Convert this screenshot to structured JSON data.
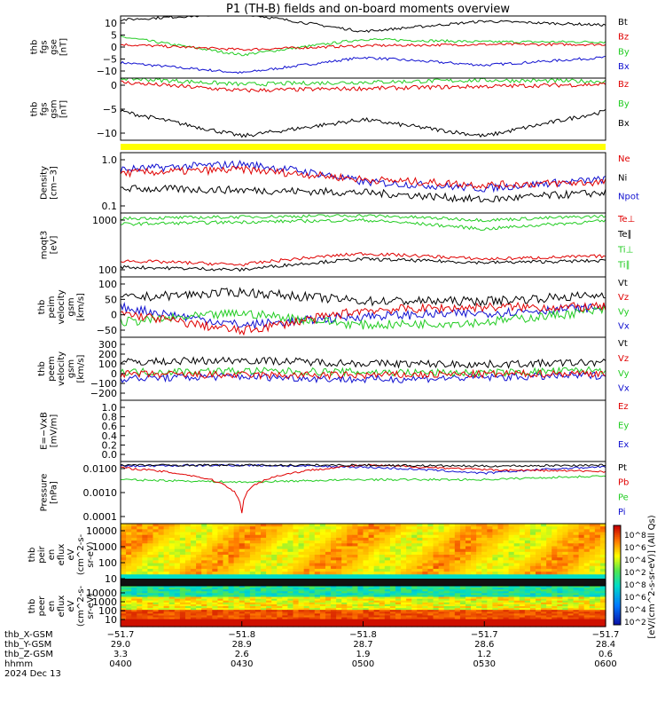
{
  "title": "P1 (TH-B) fields and on-board moments overview",
  "colors": {
    "black": "#000000",
    "red": "#e00000",
    "green": "#22cc22",
    "blue": "#1010d0",
    "yellow": "#ffff00"
  },
  "panels": [
    {
      "id": "fgs-gse",
      "ylabel": [
        "thb",
        "fgs",
        "gse",
        "[nT]"
      ],
      "ticks": [
        "10",
        "5",
        "0",
        "−5",
        "−10"
      ],
      "legend": [
        {
          "t": "Bt",
          "c": "black"
        },
        {
          "t": "Bz",
          "c": "red"
        },
        {
          "t": "By",
          "c": "green"
        },
        {
          "t": "Bx",
          "c": "blue"
        }
      ]
    },
    {
      "id": "fgs-gsm",
      "ylabel": [
        "thb",
        "fgs",
        "gsm",
        "[nT]"
      ],
      "ticks": [
        "0",
        "−5",
        "−10"
      ],
      "legend": [
        {
          "t": "Bz",
          "c": "red"
        },
        {
          "t": "By",
          "c": "green"
        },
        {
          "t": "Bx",
          "c": "black"
        }
      ]
    },
    {
      "id": "density",
      "ylabel": [
        "Density",
        "[cm−3]"
      ],
      "ticks": [
        "1.0",
        "0.1"
      ],
      "legend": [
        {
          "t": "Ne",
          "c": "red"
        },
        {
          "t": "Ni",
          "c": "black"
        },
        {
          "t": "Npot",
          "c": "blue"
        }
      ]
    },
    {
      "id": "temp",
      "ylabel": [
        "moqt3",
        "[eV]"
      ],
      "ticks": [
        "1000",
        "100"
      ],
      "legend": [
        {
          "t": "Te⊥",
          "c": "red"
        },
        {
          "t": "Te∥",
          "c": "black"
        },
        {
          "t": "Ti⊥",
          "c": "green"
        },
        {
          "t": "Ti∥",
          "c": "green"
        }
      ]
    },
    {
      "id": "peim",
      "ylabel": [
        "thb",
        "peim",
        "velocity",
        "gsm",
        "[km/s]"
      ],
      "ticks": [
        "100",
        "50",
        "0",
        "−50"
      ],
      "legend": [
        {
          "t": "Vt",
          "c": "black"
        },
        {
          "t": "Vz",
          "c": "red"
        },
        {
          "t": "Vy",
          "c": "green"
        },
        {
          "t": "Vx",
          "c": "blue"
        }
      ]
    },
    {
      "id": "peem",
      "ylabel": [
        "thb",
        "peem",
        "velocity",
        "gsm",
        "[km/s]"
      ],
      "ticks": [
        "300",
        "200",
        "100",
        "0",
        "−100",
        "−200"
      ],
      "legend": [
        {
          "t": "Vt",
          "c": "black"
        },
        {
          "t": "Vz",
          "c": "red"
        },
        {
          "t": "Vy",
          "c": "green"
        },
        {
          "t": "Vx",
          "c": "blue"
        }
      ]
    },
    {
      "id": "efield",
      "ylabel": [
        "E=−VxB",
        "[mV/m]"
      ],
      "ticks": [
        "1.0",
        "0.8",
        "0.6",
        "0.4",
        "0.2",
        "0.0"
      ],
      "legend": [
        {
          "t": "Ez",
          "c": "red"
        },
        {
          "t": "Ey",
          "c": "green"
        },
        {
          "t": "Ex",
          "c": "blue"
        }
      ]
    },
    {
      "id": "pressure",
      "ylabel": [
        "Pressure",
        "[nPa]"
      ],
      "ticks": [
        "0.0100",
        "0.0010",
        "0.0001"
      ],
      "legend": [
        {
          "t": "Pt",
          "c": "black"
        },
        {
          "t": "Pb",
          "c": "red"
        },
        {
          "t": "Pe",
          "c": "green"
        },
        {
          "t": "Pi",
          "c": "blue"
        }
      ]
    },
    {
      "id": "peir",
      "ylabel": [
        "thb",
        "peir",
        "en",
        "eflux",
        "eV",
        "(cm^2-s-",
        "sr-eV)"
      ],
      "ticks": [
        "10000",
        "1000",
        "100",
        "10"
      ],
      "legend": []
    },
    {
      "id": "peer",
      "ylabel": [
        "thb",
        "peer",
        "en",
        "eflux",
        "eV",
        "(cm^2-s-",
        "sr-eV)"
      ],
      "ticks": [
        "10000",
        "1000",
        "100",
        "10"
      ],
      "legend": []
    }
  ],
  "colorbar": {
    "ticks": [
      "10^8",
      "10^6",
      "10^4",
      "10^2",
      "10^8",
      "10^6",
      "10^4",
      "10^2"
    ],
    "label": "[eV/(cm^2-s-sr-eV)] (All Qs)"
  },
  "xaxis": {
    "rows": [
      {
        "label": "thb_X-GSM",
        "vals": [
          "−51.7",
          "−51.8",
          "−51.8",
          "−51.7",
          "−51.7"
        ]
      },
      {
        "label": "thb_Y-GSM",
        "vals": [
          "29.0",
          "28.9",
          "28.7",
          "28.6",
          "28.4"
        ]
      },
      {
        "label": "thb_Z-GSM",
        "vals": [
          "3.3",
          "2.6",
          "1.9",
          "1.2",
          "0.6"
        ]
      },
      {
        "label": "hhmm",
        "vals": [
          "0400",
          "0430",
          "0500",
          "0530",
          "0600"
        ]
      }
    ],
    "date": "2024 Dec 13"
  },
  "chart_data": [
    {
      "type": "line",
      "id": "fgs-gse",
      "ylim": [
        -12,
        12
      ],
      "x": [
        "0400",
        "0430",
        "0500",
        "0530",
        "0600"
      ],
      "series": [
        {
          "name": "Bt",
          "values": [
            10.5,
            13,
            6,
            10,
            8.5
          ]
        },
        {
          "name": "Bz",
          "values": [
            1,
            -1,
            0.5,
            1,
            1
          ]
        },
        {
          "name": "By",
          "values": [
            4,
            -3,
            3,
            2,
            2
          ]
        },
        {
          "name": "Bx",
          "values": [
            -6,
            -10,
            -4,
            -7,
            -4
          ]
        }
      ]
    },
    {
      "type": "line",
      "id": "fgs-gsm",
      "ylim": [
        -13,
        2
      ],
      "x": [
        "0400",
        "0430",
        "0500",
        "0530",
        "0600"
      ],
      "series": [
        {
          "name": "Bz",
          "values": [
            1,
            -1,
            -0.5,
            0,
            0.5
          ]
        },
        {
          "name": "By",
          "values": [
            2,
            0.5,
            1,
            1.5,
            1.2
          ]
        },
        {
          "name": "Bx",
          "values": [
            -6,
            -12,
            -8,
            -12,
            -6
          ]
        }
      ]
    },
    {
      "type": "line",
      "id": "density",
      "ylim": [
        0.1,
        1.5
      ],
      "x": [
        "0400",
        "0430",
        "0500",
        "0530",
        "0600"
      ],
      "series": [
        {
          "name": "Ne",
          "values": [
            0.6,
            0.7,
            0.45,
            0.35,
            0.4
          ]
        },
        {
          "name": "Ni",
          "values": [
            0.3,
            0.28,
            0.25,
            0.18,
            0.25
          ]
        },
        {
          "name": "Npot",
          "values": [
            0.7,
            0.9,
            0.4,
            0.3,
            0.45
          ]
        }
      ]
    },
    {
      "type": "line",
      "id": "temp",
      "ylim": [
        40,
        1500
      ],
      "x": [
        "0400",
        "0430",
        "0500",
        "0530",
        "0600"
      ],
      "series": [
        {
          "name": "Te⊥",
          "values": [
            100,
            80,
            150,
            110,
            130
          ]
        },
        {
          "name": "Te∥",
          "values": [
            70,
            60,
            110,
            90,
            100
          ]
        },
        {
          "name": "Ti⊥",
          "values": [
            1100,
            1200,
            1300,
            1000,
            1250
          ]
        },
        {
          "name": "Ti∥",
          "values": [
            800,
            900,
            1000,
            600,
            950
          ]
        }
      ]
    },
    {
      "type": "line",
      "id": "peim",
      "ylim": [
        -70,
        130
      ],
      "x": [
        "0400",
        "0430",
        "0500",
        "0530",
        "0600"
      ],
      "series": [
        {
          "name": "Vt",
          "values": [
            60,
            80,
            50,
            50,
            70
          ]
        },
        {
          "name": "Vz",
          "values": [
            10,
            -50,
            20,
            30,
            30
          ]
        },
        {
          "name": "Vy",
          "values": [
            -20,
            10,
            -30,
            -20,
            20
          ]
        },
        {
          "name": "Vx",
          "values": [
            30,
            -30,
            0,
            10,
            30
          ]
        }
      ]
    },
    {
      "type": "line",
      "id": "peem",
      "ylim": [
        -260,
        320
      ],
      "x": [
        "0400",
        "0430",
        "0500",
        "0530",
        "0600"
      ],
      "series": [
        {
          "name": "Vt",
          "values": [
            90,
            110,
            80,
            70,
            90
          ]
        },
        {
          "name": "Vz",
          "values": [
            -20,
            -30,
            -30,
            -20,
            -10
          ]
        },
        {
          "name": "Vy",
          "values": [
            0,
            10,
            0,
            -10,
            20
          ]
        },
        {
          "name": "Vx",
          "values": [
            -60,
            -40,
            -70,
            -50,
            -30
          ]
        }
      ]
    },
    {
      "type": "line",
      "id": "pressure",
      "ylim": [
        3e-05,
        0.03
      ],
      "x": [
        "0400",
        "0430",
        "0500",
        "0530",
        "0600"
      ],
      "series": [
        {
          "name": "Pt",
          "values": [
            0.02,
            0.02,
            0.02,
            0.018,
            0.02
          ]
        },
        {
          "name": "Pb",
          "values": [
            0.015,
            0.0001,
            0.02,
            0.012,
            0.01
          ]
        },
        {
          "name": "Pe",
          "values": [
            0.004,
            0.003,
            0.004,
            0.004,
            0.006
          ]
        },
        {
          "name": "Pi",
          "values": [
            0.018,
            0.02,
            0.016,
            0.008,
            0.017
          ]
        }
      ]
    }
  ]
}
